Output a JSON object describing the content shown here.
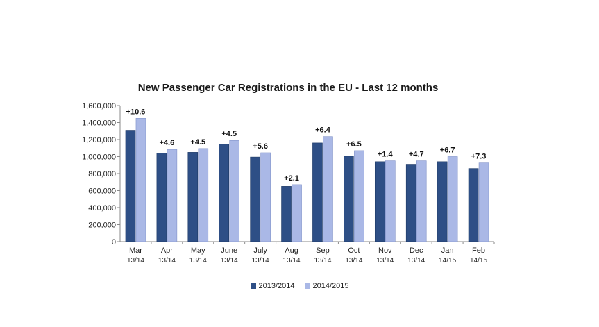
{
  "chart_data": {
    "type": "bar",
    "title": "New Passenger Car Registrations in the EU - Last 12 months",
    "xlabel": "",
    "ylabel": "",
    "ylim": [
      0,
      1600000
    ],
    "y_ticks": [
      "1,600,000",
      "1,400,000",
      "1,200,000",
      "1,000,000",
      "800,000",
      "600,000",
      "400,000",
      "200,000",
      "0"
    ],
    "grid": false,
    "legend_position": "bottom",
    "categories": [
      {
        "month": "Mar",
        "period": "13/14"
      },
      {
        "month": "Apr",
        "period": "13/14"
      },
      {
        "month": "May",
        "period": "13/14"
      },
      {
        "month": "June",
        "period": "13/14"
      },
      {
        "month": "July",
        "period": "13/14"
      },
      {
        "month": "Aug",
        "period": "13/14"
      },
      {
        "month": "Sep",
        "period": "13/14"
      },
      {
        "month": "Oct",
        "period": "13/14"
      },
      {
        "month": "Nov",
        "period": "13/14"
      },
      {
        "month": "Dec",
        "period": "13/14"
      },
      {
        "month": "Jan",
        "period": "14/15"
      },
      {
        "month": "Feb",
        "period": "14/15"
      }
    ],
    "series": [
      {
        "name": "2013/2014",
        "color": "#2e4f86",
        "values": [
          1310000,
          1040000,
          1050000,
          1145000,
          995000,
          650000,
          1160000,
          1005000,
          940000,
          910000,
          940000,
          860000
        ]
      },
      {
        "name": "2014/2015",
        "color": "#aab8e6",
        "values": [
          1450000,
          1085000,
          1095000,
          1190000,
          1045000,
          670000,
          1235000,
          1070000,
          950000,
          950000,
          1000000,
          925000
        ]
      }
    ],
    "annotations": [
      "+10.6",
      "+4.6",
      "+4.5",
      "+4.5",
      "+5.6",
      "+2.1",
      "+6.4",
      "+6.5",
      "+1.4",
      "+4.7",
      "+6.7",
      "+7.3"
    ]
  }
}
